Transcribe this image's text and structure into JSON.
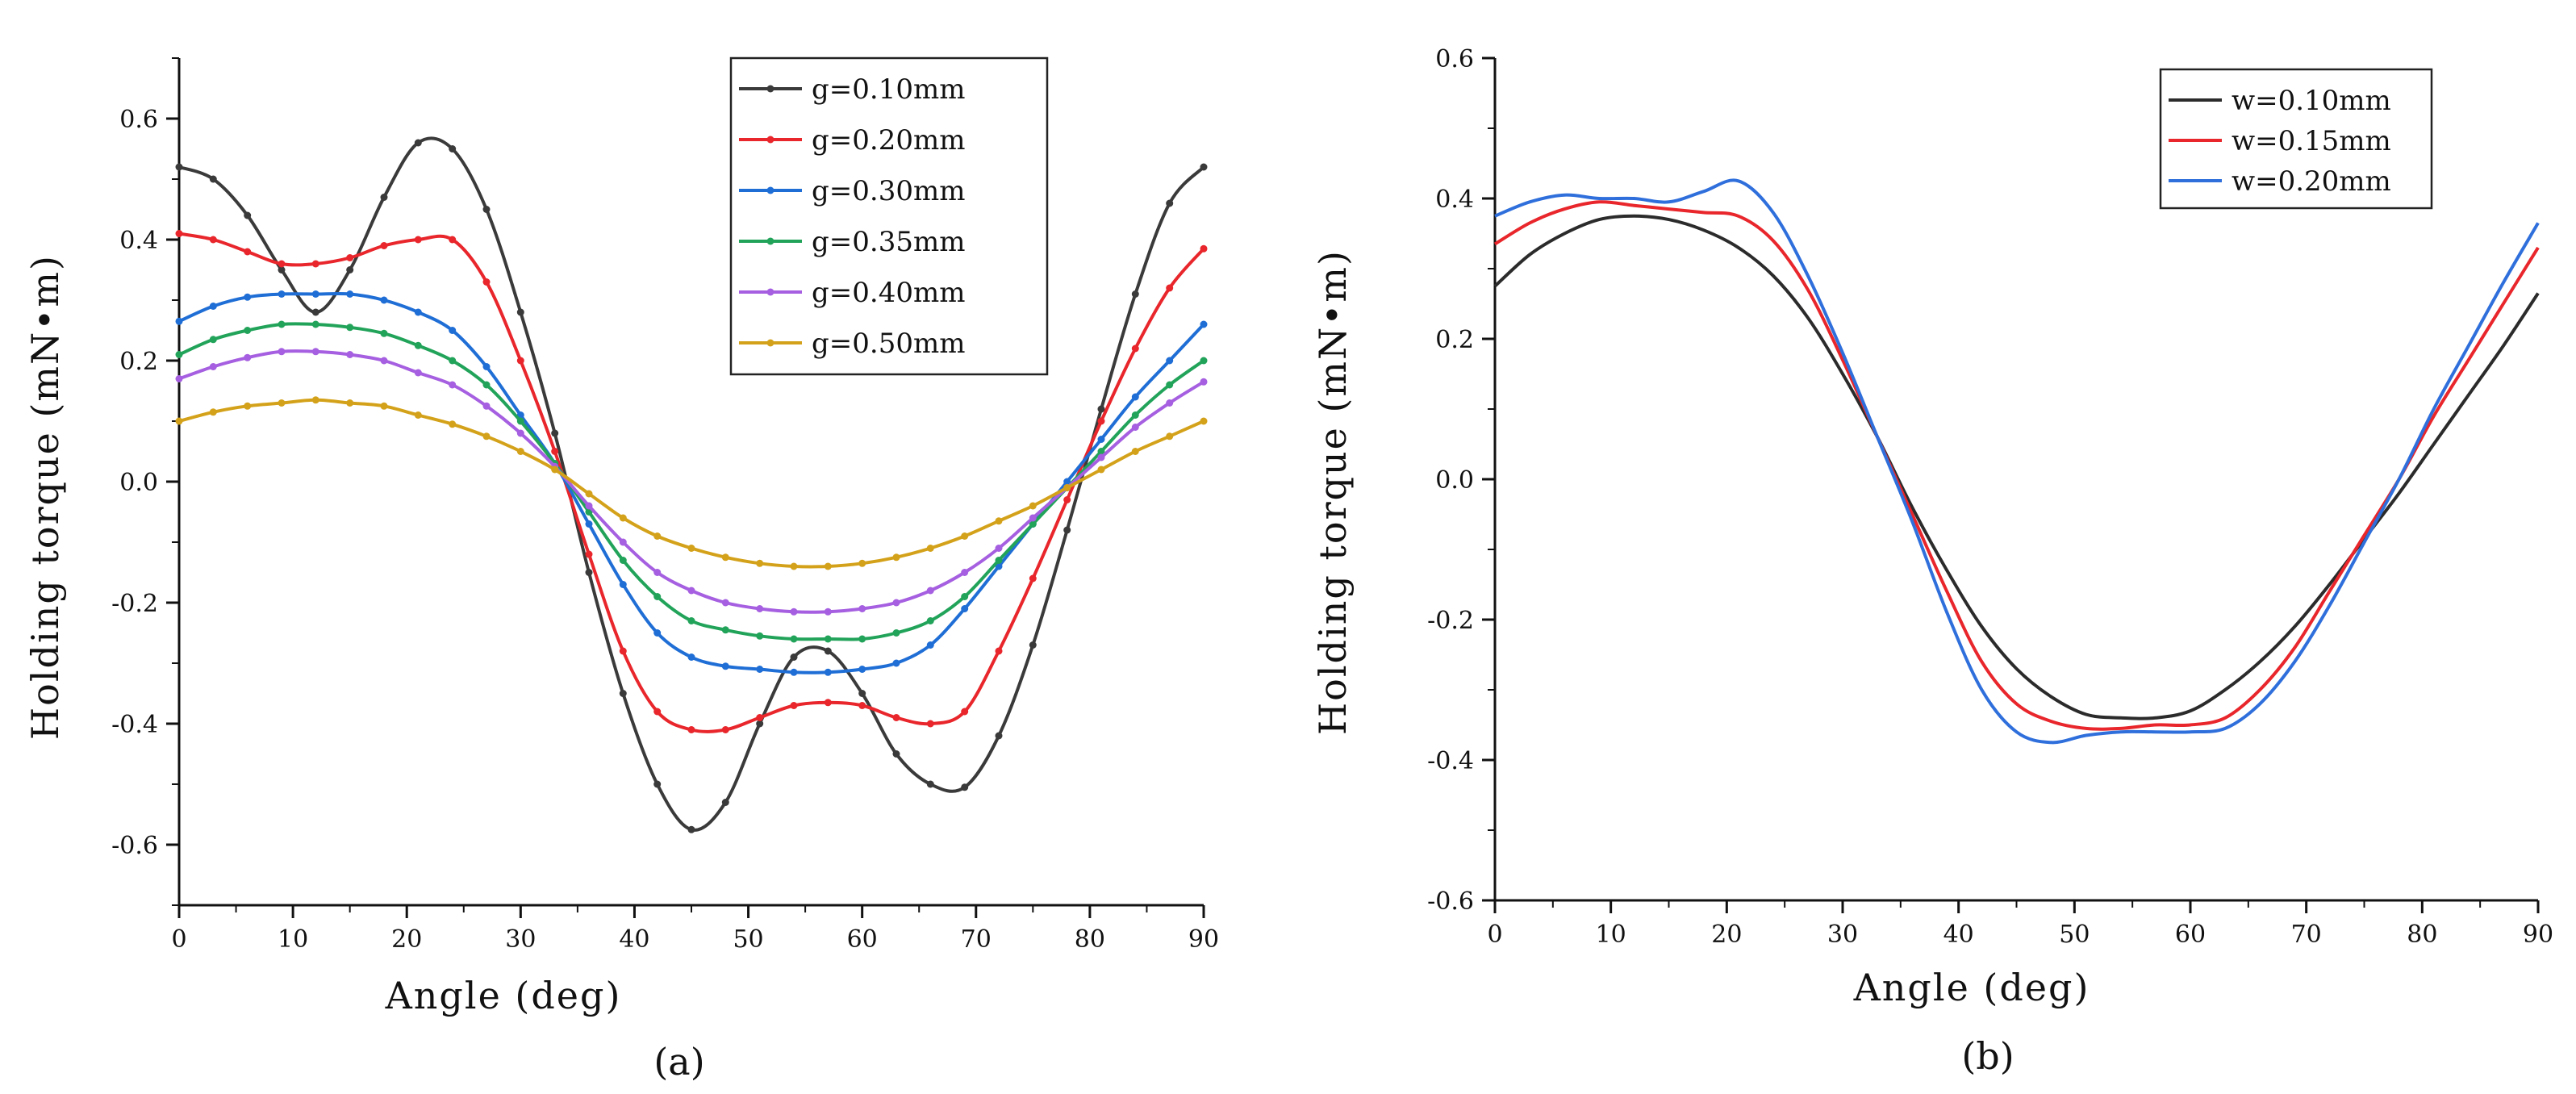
{
  "chart_data": [
    {
      "type": "line",
      "panel_label": "(a)",
      "xlabel": "Angle (deg)",
      "ylabel": "Holding torque (mN•m)",
      "xlim": [
        0,
        90
      ],
      "ylim": [
        -0.7,
        0.7
      ],
      "xticks": [
        "0",
        "10",
        "20",
        "30",
        "40",
        "50",
        "60",
        "70",
        "80",
        "90"
      ],
      "yticks": [
        {
          "value": 0.6,
          "label": "0.6"
        },
        {
          "value": 0.4,
          "label": "0.4"
        },
        {
          "value": 0.2,
          "label": "0.2"
        },
        {
          "value": 0.0,
          "label": "0.0"
        },
        {
          "value": -0.2,
          "label": "-0.2"
        },
        {
          "value": -0.4,
          "label": "-0.4"
        },
        {
          "value": -0.6,
          "label": "-0.6"
        }
      ],
      "markers": true,
      "legend_position": "top-right",
      "x": [
        0,
        3,
        6,
        9,
        12,
        15,
        18,
        21,
        24,
        27,
        30,
        33,
        36,
        39,
        42,
        45,
        48,
        51,
        54,
        57,
        60,
        63,
        66,
        69,
        72,
        75,
        78,
        81,
        84,
        87,
        90
      ],
      "series": [
        {
          "name": "g=0.10mm",
          "color": "#3a3a3a",
          "values": [
            0.52,
            0.5,
            0.44,
            0.35,
            0.28,
            0.35,
            0.47,
            0.56,
            0.55,
            0.45,
            0.28,
            0.08,
            -0.15,
            -0.35,
            -0.5,
            -0.575,
            -0.53,
            -0.4,
            -0.29,
            -0.28,
            -0.35,
            -0.45,
            -0.5,
            -0.505,
            -0.42,
            -0.27,
            -0.08,
            0.12,
            0.31,
            0.46,
            0.52
          ]
        },
        {
          "name": "g=0.20mm",
          "color": "#e8262b",
          "values": [
            0.41,
            0.4,
            0.38,
            0.36,
            0.36,
            0.37,
            0.39,
            0.4,
            0.4,
            0.33,
            0.2,
            0.05,
            -0.12,
            -0.28,
            -0.38,
            -0.41,
            -0.41,
            -0.39,
            -0.37,
            -0.365,
            -0.37,
            -0.39,
            -0.4,
            -0.38,
            -0.28,
            -0.16,
            -0.03,
            0.1,
            0.22,
            0.32,
            0.385
          ]
        },
        {
          "name": "g=0.30mm",
          "color": "#1f6ed6",
          "values": [
            0.265,
            0.29,
            0.305,
            0.31,
            0.31,
            0.31,
            0.3,
            0.28,
            0.25,
            0.19,
            0.11,
            0.03,
            -0.07,
            -0.17,
            -0.25,
            -0.29,
            -0.305,
            -0.31,
            -0.315,
            -0.315,
            -0.31,
            -0.3,
            -0.27,
            -0.21,
            -0.14,
            -0.07,
            0.0,
            0.07,
            0.14,
            0.2,
            0.26
          ]
        },
        {
          "name": "g=0.35mm",
          "color": "#22a35a",
          "values": [
            0.21,
            0.235,
            0.25,
            0.26,
            0.26,
            0.255,
            0.245,
            0.225,
            0.2,
            0.16,
            0.1,
            0.03,
            -0.05,
            -0.13,
            -0.19,
            -0.23,
            -0.245,
            -0.255,
            -0.26,
            -0.26,
            -0.26,
            -0.25,
            -0.23,
            -0.19,
            -0.13,
            -0.07,
            -0.01,
            0.05,
            0.11,
            0.16,
            0.2
          ]
        },
        {
          "name": "g=0.40mm",
          "color": "#a55fe0",
          "values": [
            0.17,
            0.19,
            0.205,
            0.215,
            0.215,
            0.21,
            0.2,
            0.18,
            0.16,
            0.125,
            0.08,
            0.025,
            -0.04,
            -0.1,
            -0.15,
            -0.18,
            -0.2,
            -0.21,
            -0.215,
            -0.215,
            -0.21,
            -0.2,
            -0.18,
            -0.15,
            -0.11,
            -0.06,
            -0.01,
            0.04,
            0.09,
            0.13,
            0.165
          ]
        },
        {
          "name": "g=0.50mm",
          "color": "#d4a21a",
          "values": [
            0.1,
            0.115,
            0.125,
            0.13,
            0.135,
            0.13,
            0.125,
            0.11,
            0.095,
            0.075,
            0.05,
            0.02,
            -0.02,
            -0.06,
            -0.09,
            -0.11,
            -0.125,
            -0.135,
            -0.14,
            -0.14,
            -0.135,
            -0.125,
            -0.11,
            -0.09,
            -0.065,
            -0.04,
            -0.01,
            0.02,
            0.05,
            0.075,
            0.1
          ]
        }
      ]
    },
    {
      "type": "line",
      "panel_label": "(b)",
      "xlabel": "Angle (deg)",
      "ylabel": "Holding torque (mN•m)",
      "xlim": [
        0,
        90
      ],
      "ylim": [
        -0.6,
        0.6
      ],
      "xticks": [
        "0",
        "10",
        "20",
        "30",
        "40",
        "50",
        "60",
        "70",
        "80",
        "90"
      ],
      "yticks": [
        {
          "value": 0.6,
          "label": "0.6"
        },
        {
          "value": 0.4,
          "label": "0.4"
        },
        {
          "value": 0.2,
          "label": "0.2"
        },
        {
          "value": 0.0,
          "label": "0.0"
        },
        {
          "value": -0.2,
          "label": "-0.2"
        },
        {
          "value": -0.4,
          "label": "-0.4"
        },
        {
          "value": -0.6,
          "label": "-0.6"
        }
      ],
      "markers": false,
      "legend_position": "top-right",
      "x": [
        0,
        3,
        6,
        9,
        12,
        15,
        18,
        21,
        24,
        27,
        30,
        33,
        36,
        39,
        42,
        45,
        48,
        51,
        54,
        57,
        60,
        63,
        66,
        69,
        72,
        75,
        78,
        81,
        84,
        87,
        90
      ],
      "series": [
        {
          "name": "w=0.10mm",
          "color": "#2b2b2b",
          "values": [
            0.275,
            0.32,
            0.35,
            0.37,
            0.375,
            0.37,
            0.355,
            0.33,
            0.29,
            0.23,
            0.15,
            0.06,
            -0.04,
            -0.13,
            -0.21,
            -0.27,
            -0.31,
            -0.335,
            -0.34,
            -0.34,
            -0.33,
            -0.3,
            -0.26,
            -0.21,
            -0.15,
            -0.085,
            -0.02,
            0.05,
            0.12,
            0.19,
            0.265
          ]
        },
        {
          "name": "w=0.15mm",
          "color": "#e8262b",
          "values": [
            0.335,
            0.365,
            0.385,
            0.395,
            0.39,
            0.385,
            0.38,
            0.375,
            0.34,
            0.27,
            0.17,
            0.06,
            -0.05,
            -0.16,
            -0.26,
            -0.32,
            -0.345,
            -0.355,
            -0.355,
            -0.35,
            -0.35,
            -0.34,
            -0.3,
            -0.24,
            -0.16,
            -0.08,
            0.0,
            0.09,
            0.17,
            0.25,
            0.33
          ]
        },
        {
          "name": "w=0.20mm",
          "color": "#2f6fdc",
          "values": [
            0.375,
            0.395,
            0.405,
            0.4,
            0.4,
            0.395,
            0.41,
            0.425,
            0.38,
            0.29,
            0.18,
            0.06,
            -0.06,
            -0.19,
            -0.3,
            -0.36,
            -0.375,
            -0.365,
            -0.36,
            -0.36,
            -0.36,
            -0.355,
            -0.32,
            -0.26,
            -0.18,
            -0.09,
            0.0,
            0.1,
            0.19,
            0.28,
            0.365
          ]
        }
      ]
    }
  ]
}
